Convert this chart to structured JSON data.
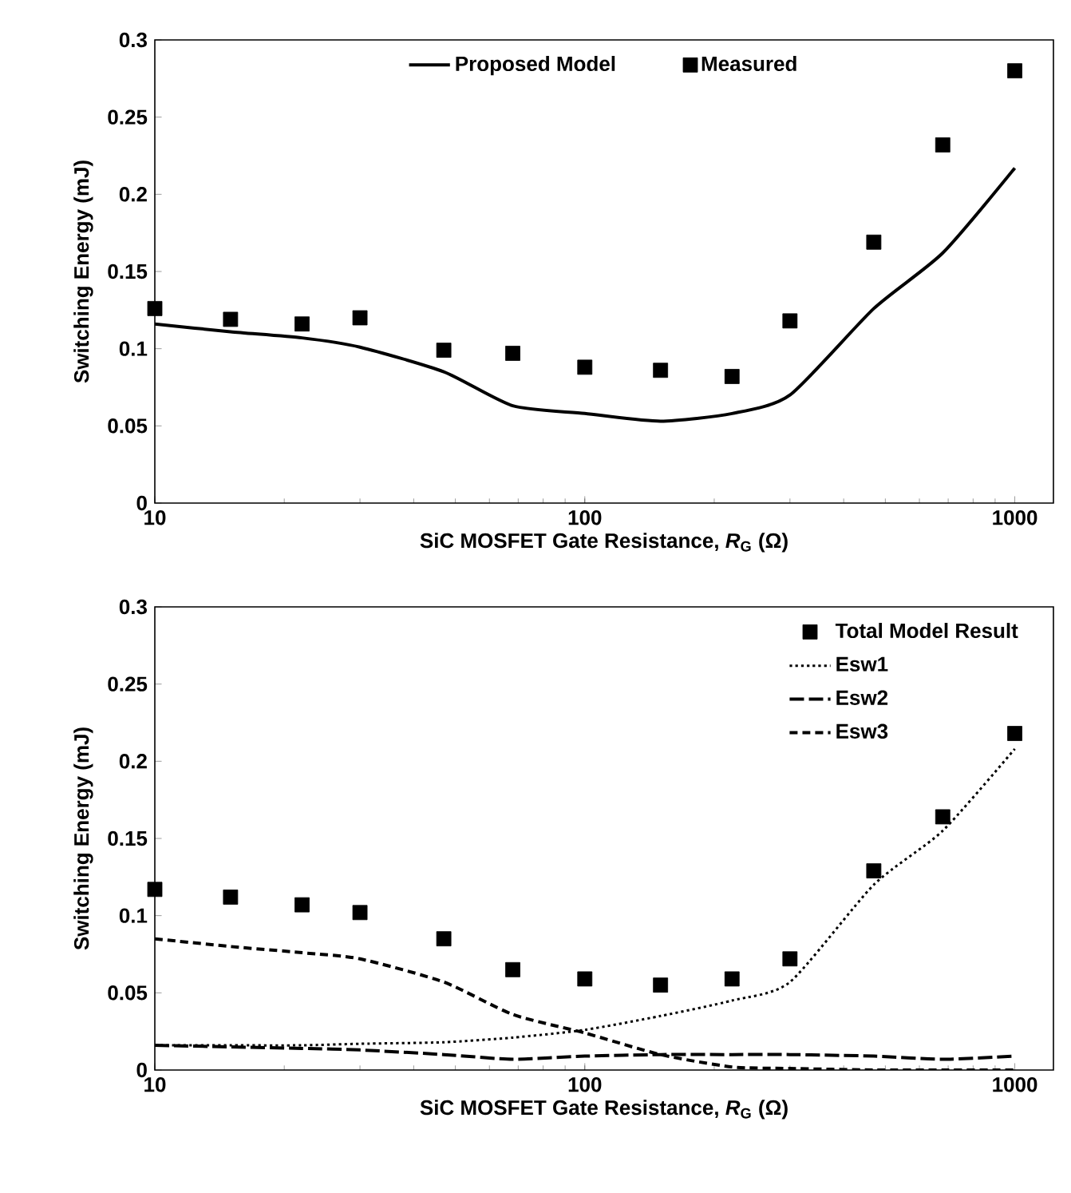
{
  "chart_data": [
    {
      "type": "line",
      "xlabel": "SiC MOSFET Gate Resistance, *R*$_{G}$ (Ω)",
      "ylabel": "Switching Energy (mJ)",
      "log": "x",
      "xlim": [
        10,
        1230
      ],
      "xticks": [
        10,
        100,
        1000
      ],
      "ylim": [
        0,
        0.3
      ],
      "yticks": [
        0,
        0.05,
        0.1,
        0.15,
        0.2,
        0.25,
        0.3
      ],
      "grid": false,
      "legend": "top",
      "series": [
        {
          "name": "Proposed Model",
          "color": "#000000",
          "line_style": "solid",
          "x": [
            10,
            15,
            22,
            30,
            47,
            68,
            100,
            150,
            220,
            300,
            470,
            680,
            1000
          ],
          "values": [
            0.116,
            0.111,
            0.107,
            0.101,
            0.085,
            0.063,
            0.058,
            0.053,
            0.058,
            0.07,
            0.126,
            0.162,
            0.217
          ]
        },
        {
          "name": "Measured",
          "type": "scatter",
          "color": "#000000",
          "marker": "square",
          "x": [
            10,
            15,
            22,
            30,
            47,
            68,
            100,
            150,
            220,
            300,
            470,
            680,
            1000
          ],
          "values": [
            0.126,
            0.119,
            0.116,
            0.12,
            0.099,
            0.097,
            0.088,
            0.086,
            0.082,
            0.118,
            0.169,
            0.232,
            0.28
          ]
        }
      ]
    },
    {
      "type": "line",
      "xlabel": "SiC MOSFET Gate Resistance, *R*$_{G}$ (Ω)",
      "ylabel": "Switching Energy (mJ)",
      "log": "x",
      "xlim": [
        10,
        1230
      ],
      "xticks": [
        10,
        100,
        1000
      ],
      "ylim": [
        0,
        0.3
      ],
      "yticks": [
        0,
        0.05,
        0.1,
        0.15,
        0.2,
        0.25,
        0.3
      ],
      "grid": false,
      "legend": "top right",
      "series": [
        {
          "name": "Total Model Result",
          "type": "scatter",
          "color": "#000000",
          "marker": "square",
          "x": [
            10,
            15,
            22,
            30,
            47,
            68,
            100,
            150,
            220,
            300,
            470,
            680,
            1000
          ],
          "values": [
            0.117,
            0.112,
            0.107,
            0.102,
            0.085,
            0.065,
            0.059,
            0.055,
            0.059,
            0.072,
            0.129,
            0.164,
            0.218
          ]
        },
        {
          "name": "Esw1",
          "color": "#000000",
          "line_style": "dotted",
          "x": [
            10,
            15,
            22,
            30,
            47,
            68,
            100,
            150,
            220,
            300,
            470,
            680,
            1000
          ],
          "values": [
            0.016,
            0.016,
            0.016,
            0.017,
            0.018,
            0.021,
            0.026,
            0.035,
            0.045,
            0.057,
            0.12,
            0.155,
            0.208
          ]
        },
        {
          "name": "Esw2",
          "color": "#000000",
          "line_style": "dashed",
          "x": [
            10,
            15,
            22,
            30,
            47,
            68,
            100,
            150,
            220,
            300,
            470,
            680,
            1000
          ],
          "values": [
            0.016,
            0.015,
            0.014,
            0.013,
            0.01,
            0.007,
            0.009,
            0.01,
            0.01,
            0.01,
            0.009,
            0.007,
            0.009
          ]
        },
        {
          "name": "Esw3",
          "color": "#000000",
          "line_style": "dashed",
          "x": [
            10,
            15,
            22,
            30,
            47,
            68,
            100,
            150,
            220,
            300,
            470,
            680,
            1000
          ],
          "values": [
            0.085,
            0.08,
            0.076,
            0.072,
            0.057,
            0.036,
            0.024,
            0.01,
            0.002,
            0.001,
            0.0,
            0.0,
            0.0
          ]
        }
      ]
    }
  ]
}
